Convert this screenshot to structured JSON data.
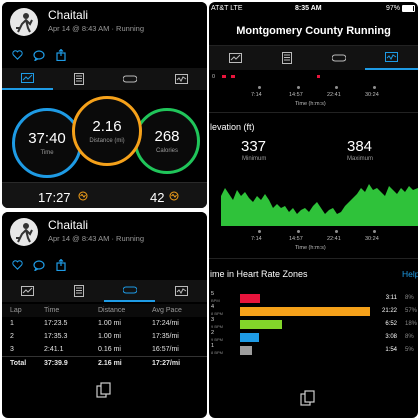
{
  "activity": {
    "user": "Chaitali",
    "meta": "Apr 14 @ 8:43 AM · Running"
  },
  "summary": {
    "time": {
      "value": "37:40",
      "label": "Time"
    },
    "distance": {
      "value": "2.16",
      "label": "Distance (mi)"
    },
    "calories": {
      "value": "268",
      "label": "Calories"
    },
    "bottom_left": "17:27",
    "bottom_right": "42"
  },
  "laps": {
    "headers": [
      "Lap",
      "Time",
      "Distance",
      "Avg Pace"
    ],
    "rows": [
      [
        "1",
        "17:23.5",
        "1.00 mi",
        "17:24/mi"
      ],
      [
        "2",
        "17:35.3",
        "1.00 mi",
        "17:35/mi"
      ],
      [
        "3",
        "2:41.1",
        "0.16 mi",
        "16:57/mi"
      ]
    ],
    "total": [
      "Total",
      "37:39.9",
      "2.16 mi",
      "17:27/mi"
    ]
  },
  "status_bar": {
    "carrier": "AT&T  LTE",
    "time": "8:35 AM",
    "battery": "97%"
  },
  "nav": {
    "title": "Montgomery County Running"
  },
  "time_axis": {
    "ticks": [
      "7:14",
      "14:57",
      "22:41",
      "30:24"
    ],
    "label": "Time (h:m:s)",
    "top_tick": "0"
  },
  "elevation": {
    "title": "levation (ft)",
    "min": {
      "value": "337",
      "label": "Minimum"
    },
    "max": {
      "value": "384",
      "label": "Maximum"
    }
  },
  "hr_zones": {
    "title": "ime in Heart Rate Zones",
    "help": "Help",
    "zones": [
      {
        "zone": "5",
        "bpm": "BPM",
        "time": "3:11",
        "pct": "8%",
        "fraction": 0.085,
        "color": "#e8143c"
      },
      {
        "zone": "4",
        "bpm": "8 BPM",
        "time": "21:22",
        "pct": "57%",
        "fraction": 0.567,
        "color": "#f5a11a"
      },
      {
        "zone": "3",
        "bpm": "9 BPM",
        "time": "6:52",
        "pct": "18%",
        "fraction": 0.182,
        "color": "#82d62a"
      },
      {
        "zone": "2",
        "bpm": "9 BPM",
        "time": "3:08",
        "pct": "8%",
        "fraction": 0.083,
        "color": "#1e9be5"
      },
      {
        "zone": "1",
        "bpm": "8 BPM",
        "time": "1:54",
        "pct": "5%",
        "fraction": 0.05,
        "color": "#9d9d9d"
      }
    ]
  },
  "colors": {
    "accent": "#1e9be5",
    "time_ring": "#1e9be5",
    "distance_ring": "#f5a11a",
    "calories_ring": "#20c55a",
    "elevation_fill": "#2fc23a"
  },
  "icons": [
    "user-avatar-icon",
    "heart-icon",
    "comment-icon",
    "share-icon",
    "summary-tab-icon",
    "notes-tab-icon",
    "laps-tab-icon",
    "chart-tab-icon",
    "copy-icon",
    "flame-icon"
  ]
}
